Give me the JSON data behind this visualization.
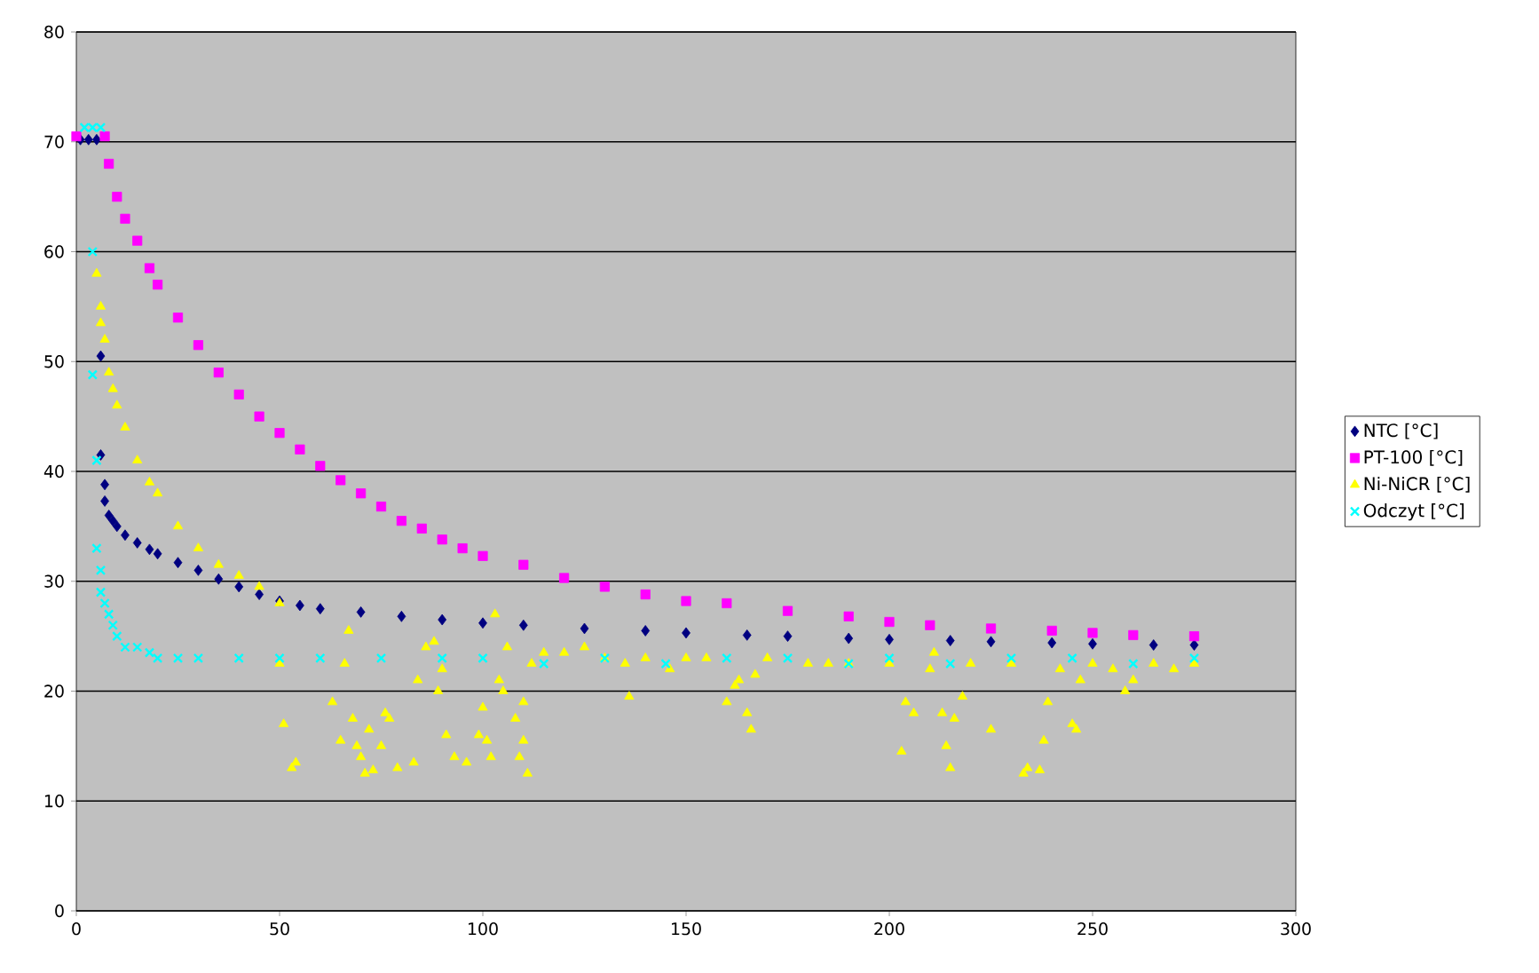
{
  "chart_data": {
    "type": "scatter",
    "xlim": [
      0,
      300
    ],
    "ylim": [
      0,
      80
    ],
    "xticks": [
      0,
      50,
      100,
      150,
      200,
      250,
      300
    ],
    "yticks": [
      0,
      10,
      20,
      30,
      40,
      50,
      60,
      70,
      80
    ],
    "grid": "y",
    "legend": "right",
    "series": [
      {
        "name": "NTC [°C]",
        "color": "#000080",
        "marker": "diamond",
        "x": [
          1,
          3,
          5,
          6,
          6,
          7,
          7,
          8,
          9,
          10,
          12,
          15,
          18,
          20,
          25,
          30,
          35,
          40,
          45,
          50,
          55,
          60,
          70,
          80,
          90,
          100,
          110,
          125,
          140,
          150,
          165,
          175,
          190,
          200,
          215,
          225,
          240,
          250,
          265,
          275
        ],
        "values": [
          70.2,
          70.2,
          70.2,
          50.5,
          41.5,
          38.8,
          37.3,
          36,
          35.5,
          35,
          34.2,
          33.5,
          32.9,
          32.5,
          31.7,
          31,
          30.2,
          29.5,
          28.8,
          28.2,
          27.8,
          27.5,
          27.2,
          26.8,
          26.5,
          26.2,
          26,
          25.7,
          25.5,
          25.3,
          25.1,
          25,
          24.8,
          24.7,
          24.6,
          24.5,
          24.4,
          24.3,
          24.2,
          24.2
        ]
      },
      {
        "name": "PT-100 [°C]",
        "color": "#ff00ff",
        "marker": "square",
        "x": [
          0,
          7,
          8,
          10,
          12,
          15,
          18,
          20,
          25,
          30,
          35,
          40,
          45,
          50,
          55,
          60,
          65,
          70,
          75,
          80,
          85,
          90,
          95,
          100,
          110,
          120,
          130,
          140,
          150,
          160,
          175,
          190,
          200,
          210,
          225,
          240,
          250,
          260,
          275
        ],
        "values": [
          70.5,
          70.5,
          68,
          65,
          63,
          61,
          58.5,
          57,
          54,
          51.5,
          49,
          47,
          45,
          43.5,
          42,
          40.5,
          39.2,
          38,
          36.8,
          35.5,
          34.8,
          33.8,
          33,
          32.3,
          31.5,
          30.3,
          29.5,
          28.8,
          28.2,
          28,
          27.3,
          26.8,
          26.3,
          26,
          25.7,
          25.5,
          25.3,
          25.1,
          25
        ]
      },
      {
        "name": "Ni-NiCR [°C]",
        "color": "#ffff00",
        "marker": "triangle",
        "x": [
          5,
          6,
          6,
          7,
          8,
          9,
          10,
          12,
          15,
          18,
          20,
          25,
          30,
          35,
          40,
          45,
          50,
          50,
          51,
          53,
          54,
          63,
          65,
          66,
          67,
          68,
          69,
          70,
          71,
          72,
          73,
          75,
          76,
          77,
          79,
          83,
          84,
          86,
          88,
          89,
          90,
          91,
          93,
          96,
          99,
          100,
          101,
          102,
          103,
          104,
          105,
          106,
          108,
          109,
          110,
          110,
          111,
          112,
          115,
          120,
          125,
          130,
          135,
          136,
          140,
          146,
          150,
          155,
          160,
          162,
          163,
          165,
          166,
          167,
          170,
          180,
          185,
          190,
          200,
          203,
          204,
          206,
          210,
          211,
          213,
          214,
          215,
          216,
          218,
          220,
          225,
          230,
          233,
          234,
          237,
          238,
          239,
          242,
          245,
          246,
          247,
          250,
          255,
          258,
          260,
          265,
          270,
          275
        ],
        "values": [
          58,
          55,
          53.5,
          52,
          49,
          47.5,
          46,
          44,
          41,
          39,
          38,
          35,
          33,
          31.5,
          30.5,
          29.5,
          28,
          22.5,
          17,
          13,
          13.5,
          19,
          15.5,
          22.5,
          25.5,
          17.5,
          15,
          14,
          12.5,
          16.5,
          12.8,
          15,
          18,
          17.5,
          13,
          13.5,
          21,
          24,
          24.5,
          20,
          22,
          16,
          14,
          13.5,
          16,
          18.5,
          15.5,
          14,
          27,
          21,
          20,
          24,
          17.5,
          14,
          19,
          15.5,
          12.5,
          22.5,
          23.5,
          23.5,
          24,
          23,
          22.5,
          19.5,
          23,
          22,
          23,
          23,
          19,
          20.5,
          21,
          18,
          16.5,
          21.5,
          23,
          22.5,
          22.5,
          22.5,
          22.5,
          14.5,
          19,
          18,
          22,
          23.5,
          18,
          15,
          13,
          17.5,
          19.5,
          22.5,
          16.5,
          22.5,
          12.5,
          13,
          12.8,
          15.5,
          19,
          22,
          17,
          16.5,
          21,
          22.5,
          22,
          20,
          21,
          22.5,
          22,
          22.5
        ]
      },
      {
        "name": "Odczyt [°C]",
        "color": "#00ffff",
        "marker": "cross",
        "x": [
          2,
          4,
          6,
          4,
          4,
          5,
          5,
          6,
          6,
          7,
          8,
          9,
          10,
          12,
          15,
          18,
          20,
          25,
          30,
          40,
          50,
          60,
          75,
          90,
          100,
          115,
          130,
          145,
          160,
          175,
          190,
          200,
          215,
          230,
          245,
          260,
          275
        ],
        "values": [
          71.3,
          71.3,
          71.3,
          60,
          48.8,
          41,
          33,
          31,
          29,
          28,
          27,
          26,
          25,
          24,
          24,
          23.5,
          23,
          23,
          23,
          23,
          23,
          23,
          23,
          23,
          23,
          22.5,
          23,
          22.5,
          23,
          23,
          22.5,
          23,
          22.5,
          23,
          23,
          22.5,
          23
        ]
      }
    ]
  }
}
